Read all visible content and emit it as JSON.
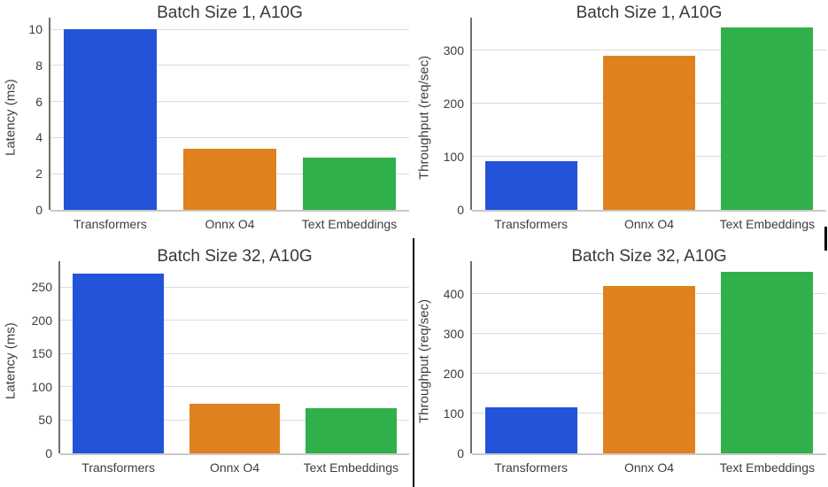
{
  "figure": {
    "background": "#ffffff",
    "layout": "2x2-grid"
  },
  "palette": {
    "bar_colors": [
      "#2353d8",
      "#e0811f",
      "#30b04b"
    ],
    "gridline": "#dcdcdc",
    "axis_spine": "#6e6e6e",
    "baseline": "#c9c9c9",
    "title_text": "#383838",
    "tick_text": "#3d3d3d",
    "divider": "#000000"
  },
  "chart_data": [
    {
      "type": "bar",
      "title": "Batch Size 1, A10G",
      "xlabel": "",
      "ylabel": "Latency (ms)",
      "categories": [
        "Transformers",
        "Onnx O4",
        "Text Embeddings"
      ],
      "values": [
        10.0,
        3.4,
        2.9
      ],
      "yticks": [
        0,
        2,
        4,
        6,
        8,
        10
      ],
      "ylim": [
        0,
        10.25
      ],
      "grid": true,
      "legend": false,
      "bar_colors": [
        "#2353d8",
        "#e0811f",
        "#30b04b"
      ]
    },
    {
      "type": "bar",
      "title": "Batch Size 1, A10G",
      "xlabel": "",
      "ylabel": "Throughput (req/sec)",
      "categories": [
        "Transformers",
        "Onnx O4",
        "Text Embeddings"
      ],
      "values": [
        92,
        290,
        343
      ],
      "yticks": [
        0,
        100,
        200,
        300
      ],
      "ylim": [
        0,
        348
      ],
      "grid": true,
      "legend": false,
      "bar_colors": [
        "#2353d8",
        "#e0811f",
        "#30b04b"
      ]
    },
    {
      "type": "bar",
      "title": "Batch Size 32, A10G",
      "xlabel": "",
      "ylabel": "Latency (ms)",
      "categories": [
        "Transformers",
        "Onnx O4",
        "Text Embeddings"
      ],
      "values": [
        270,
        75,
        68
      ],
      "yticks": [
        0,
        50,
        100,
        150,
        200,
        250
      ],
      "ylim": [
        0,
        278
      ],
      "grid": true,
      "legend": false,
      "bar_colors": [
        "#2353d8",
        "#e0811f",
        "#30b04b"
      ]
    },
    {
      "type": "bar",
      "title": "Batch Size 32, A10G",
      "xlabel": "",
      "ylabel": "Throughput (req/sec)",
      "categories": [
        "Transformers",
        "Onnx O4",
        "Text Embeddings"
      ],
      "values": [
        115,
        420,
        455
      ],
      "yticks": [
        0,
        100,
        200,
        300,
        400
      ],
      "ylim": [
        0,
        464
      ],
      "grid": true,
      "legend": false,
      "bar_colors": [
        "#2353d8",
        "#e0811f",
        "#30b04b"
      ]
    }
  ]
}
